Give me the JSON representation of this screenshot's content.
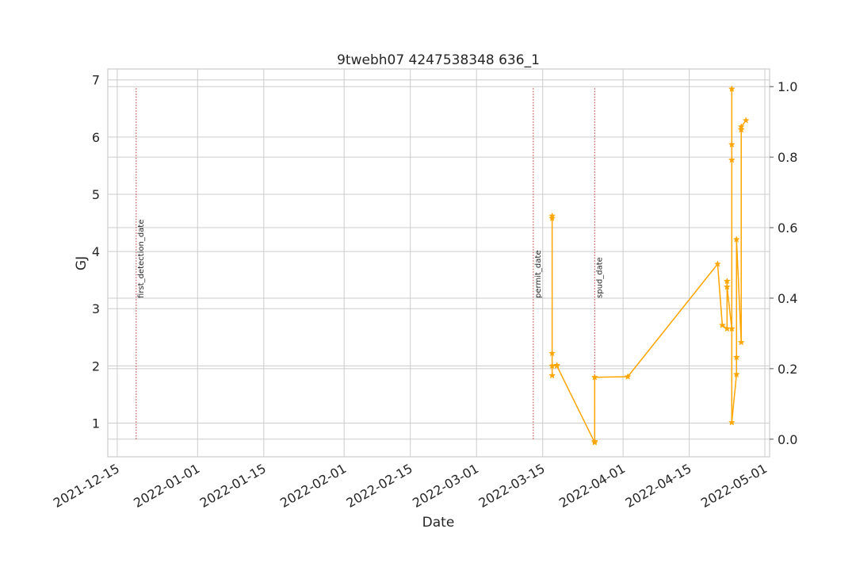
{
  "chart_data": {
    "type": "line",
    "title": "9twebh07 4247538348 636_1",
    "xlabel": "Date",
    "ylabel": "GJ",
    "ylabel_color": "#1f77b4",
    "series_color": "#ffa500",
    "event_line_color": "#c0504d",
    "grid": true,
    "ylim": [
      0.41,
      7.19
    ],
    "y_ticks": [
      1,
      2,
      3,
      4,
      5,
      6,
      7
    ],
    "y2lim": [
      -0.05,
      1.05
    ],
    "y2_ticks": [
      "0.0",
      "0.2",
      "0.4",
      "0.6",
      "0.8",
      "1.0"
    ],
    "xlim": [
      "2021-12-13",
      "2022-05-02"
    ],
    "x_ticks": [
      "2021-12-15",
      "2022-01-01",
      "2022-01-15",
      "2022-02-01",
      "2022-02-15",
      "2022-03-01",
      "2022-03-15",
      "2022-04-01",
      "2022-04-15",
      "2022-05-01"
    ],
    "annotations": [
      {
        "label": "first_detection_date",
        "date": "2021-12-19"
      },
      {
        "label": "permit_date",
        "date": "2022-03-13"
      },
      {
        "label": "spud_date",
        "date": "2022-03-26"
      }
    ],
    "series": [
      {
        "x": [
          "2022-03-17",
          "2022-03-17",
          "2022-03-17",
          "2022-03-17",
          "2022-03-17",
          "2022-03-18",
          "2022-03-18",
          "2022-03-26",
          "2022-03-26",
          "2022-03-26",
          "2022-04-02",
          "2022-04-21",
          "2022-04-22",
          "2022-04-23",
          "2022-04-23",
          "2022-04-23",
          "2022-04-24",
          "2022-04-24",
          "2022-04-24",
          "2022-04-24",
          "2022-04-24",
          "2022-04-25",
          "2022-04-25",
          "2022-04-25",
          "2022-04-26",
          "2022-04-26",
          "2022-04-26",
          "2022-04-26",
          "2022-04-27"
        ],
        "values": [
          1.83,
          2.22,
          4.58,
          4.62,
          2.0,
          2.01,
          2.0,
          0.66,
          0.68,
          1.8,
          1.81,
          3.78,
          2.71,
          2.65,
          3.48,
          3.38,
          2.65,
          5.87,
          5.6,
          6.84,
          1.01,
          1.85,
          2.15,
          4.21,
          2.41,
          6.13,
          6.13,
          6.18,
          6.29
        ]
      }
    ]
  }
}
